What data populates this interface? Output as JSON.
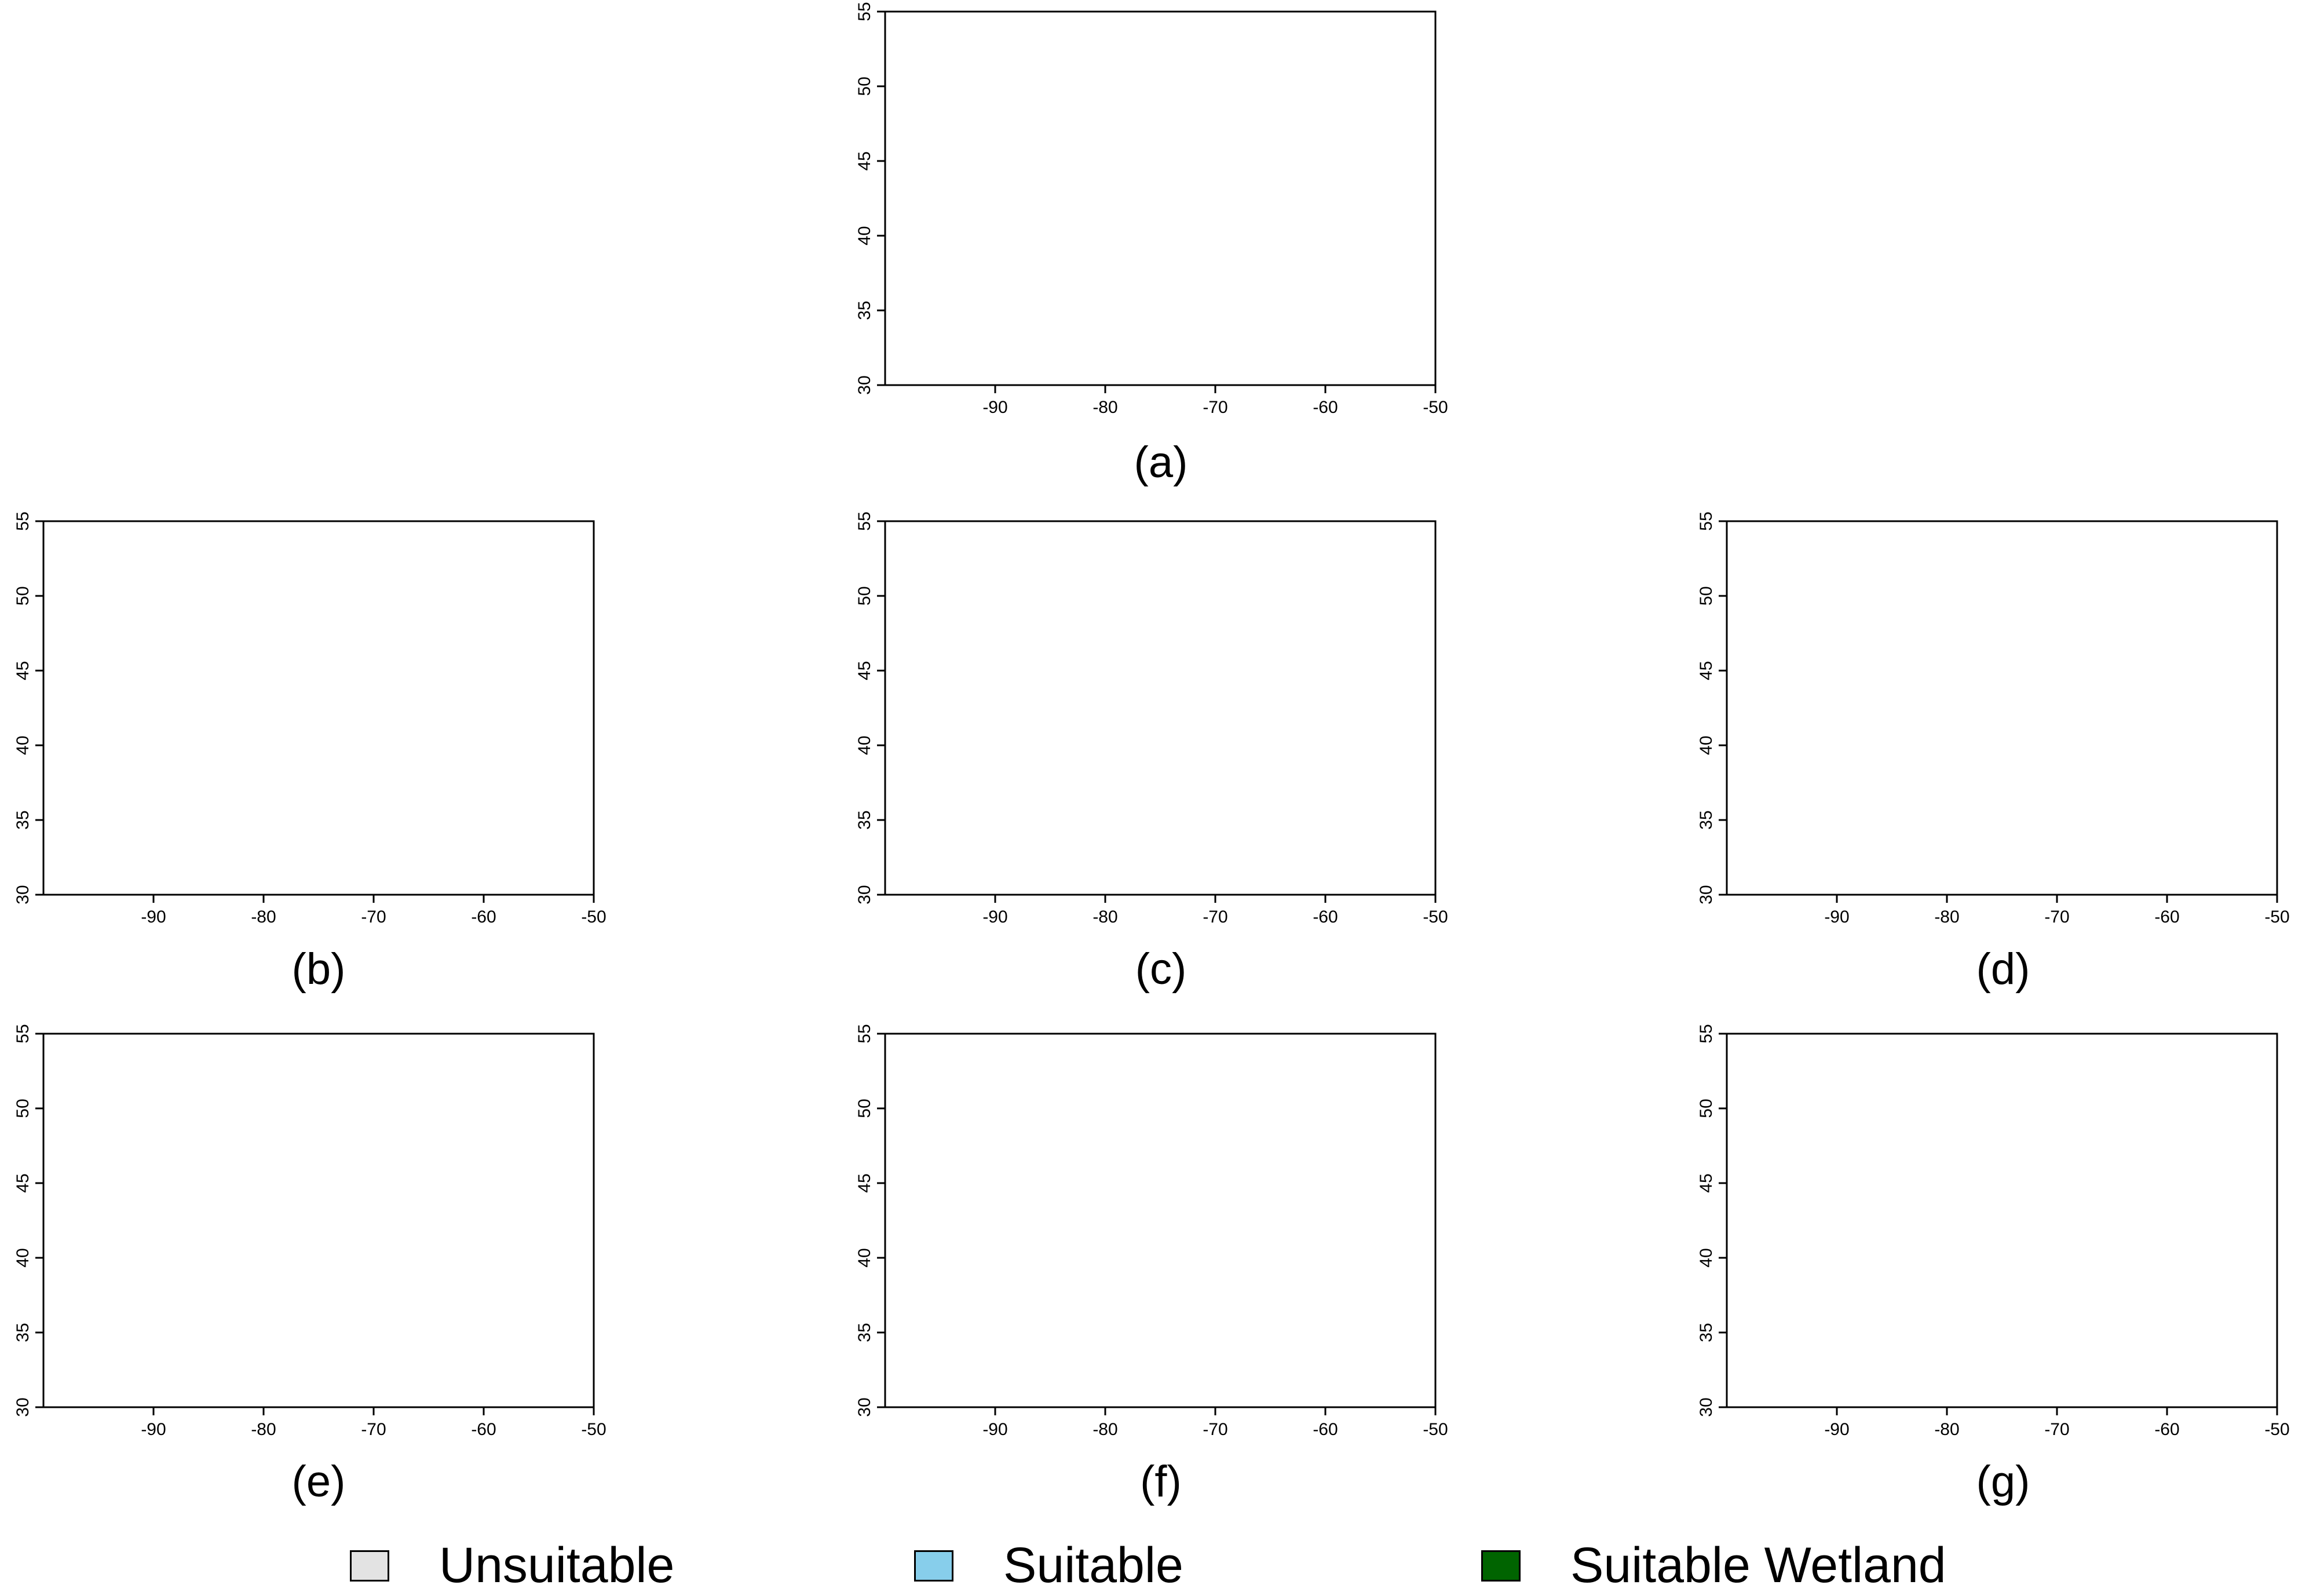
{
  "figure": {
    "axes": {
      "x_ticks": [
        "-90",
        "-80",
        "-70",
        "-60",
        "-50"
      ],
      "y_ticks": [
        "30",
        "35",
        "40",
        "45",
        "50",
        "55"
      ],
      "x_range": [
        -100,
        -50
      ],
      "y_range": [
        30,
        55
      ]
    },
    "panels": [
      {
        "caption": "(a)"
      },
      {
        "caption": "(b)"
      },
      {
        "caption": "(c)"
      },
      {
        "caption": "(d)"
      },
      {
        "caption": "(e)"
      },
      {
        "caption": "(f)"
      },
      {
        "caption": "(g)"
      }
    ],
    "legend": [
      {
        "label": "Unsuitable",
        "color": "#e3e3e3"
      },
      {
        "label": "Suitable",
        "color": "#87ceeb"
      },
      {
        "label": "Suitable Wetland",
        "color": "#006400"
      }
    ]
  }
}
